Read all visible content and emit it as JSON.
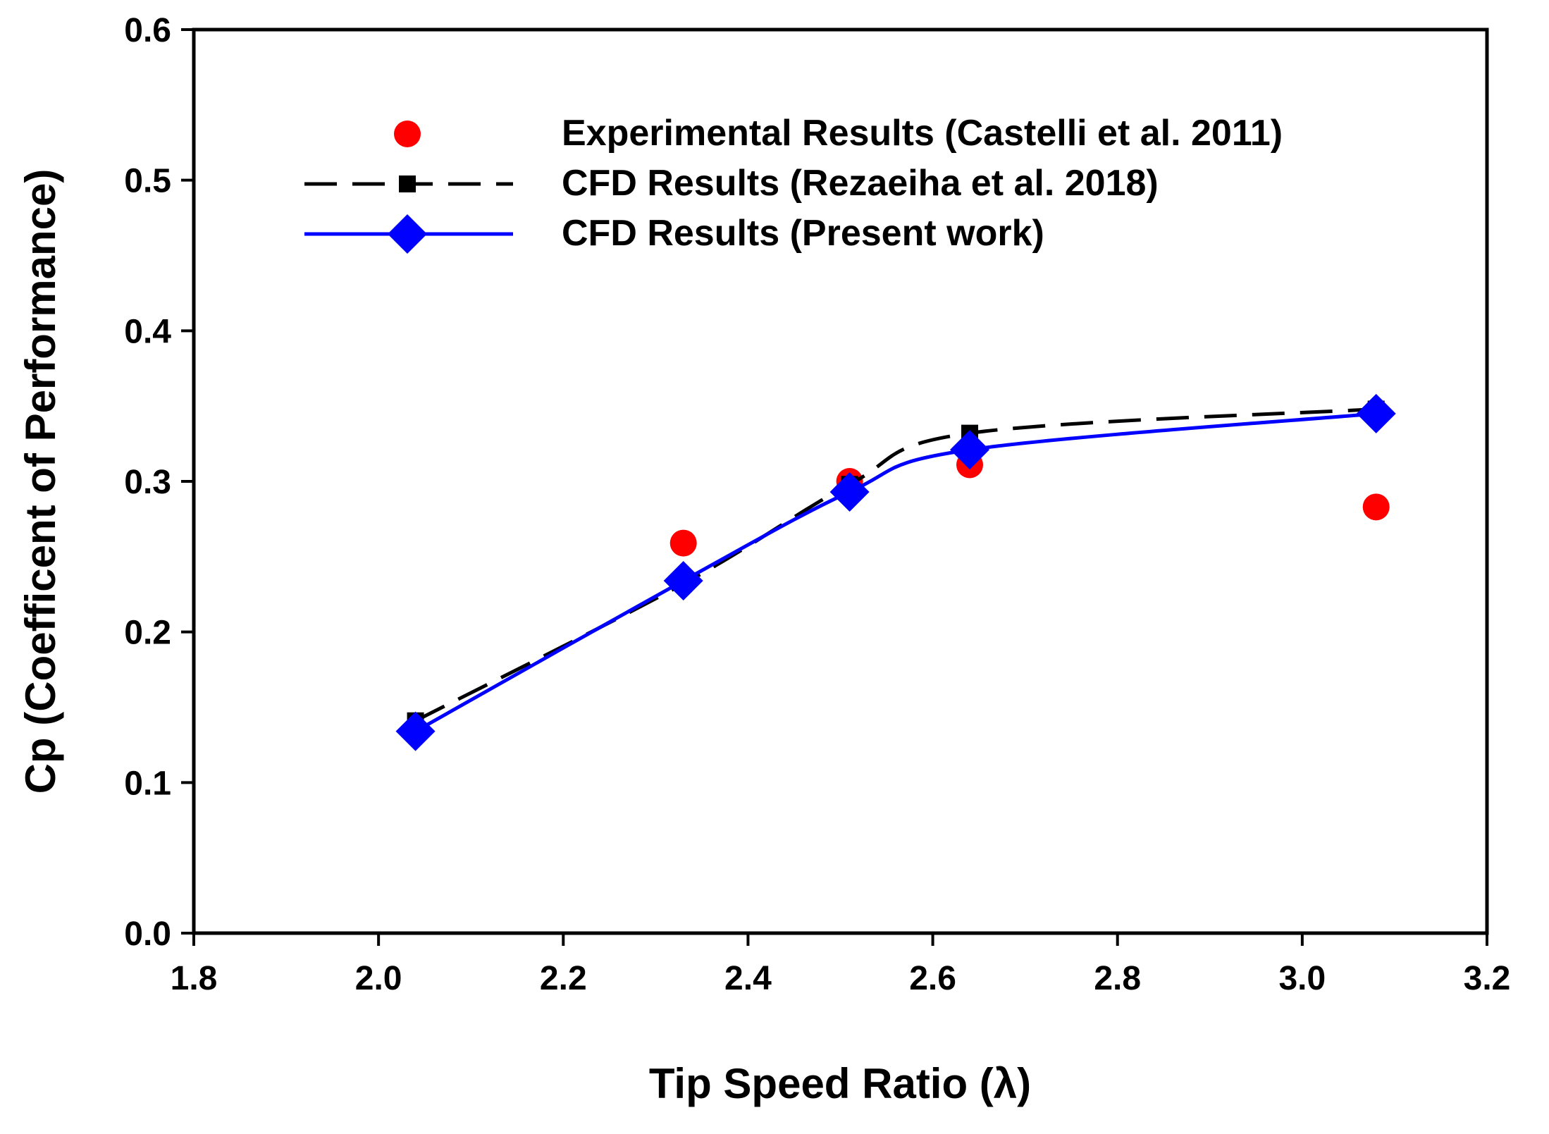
{
  "chart_data": {
    "type": "line",
    "title": "",
    "xlabel": "Tip Speed Ratio (λ)",
    "ylabel": "Cp (Coefficent of Performance)",
    "xlim": [
      1.8,
      3.2
    ],
    "ylim": [
      0.0,
      0.6
    ],
    "x_ticks": [
      "1.8",
      "2.0",
      "2.2",
      "2.4",
      "2.6",
      "2.8",
      "3.0",
      "3.2"
    ],
    "y_ticks": [
      "0.0",
      "0.1",
      "0.2",
      "0.3",
      "0.4",
      "0.5",
      "0.6"
    ],
    "grid": false,
    "legend_position": "top-left",
    "series": [
      {
        "name": "Experimental Results (Castelli et al. 2011)",
        "style": "markers",
        "marker": "circle",
        "color": "#ff0000",
        "x": [
          2.33,
          2.51,
          2.64,
          3.08
        ],
        "y": [
          0.259,
          0.3,
          0.311,
          0.283
        ]
      },
      {
        "name": "CFD Results (Rezaeiha et al. 2018)",
        "style": "dashed-line",
        "marker": "square",
        "color": "#000000",
        "x": [
          2.04,
          2.33,
          2.51,
          2.64,
          3.08
        ],
        "y": [
          0.141,
          0.232,
          0.298,
          0.332,
          0.348
        ]
      },
      {
        "name": "CFD Results (Present work)",
        "style": "solid-line",
        "marker": "diamond",
        "color": "#0000ff",
        "x": [
          2.04,
          2.33,
          2.51,
          2.64,
          3.08
        ],
        "y": [
          0.134,
          0.234,
          0.293,
          0.321,
          0.345
        ]
      }
    ]
  }
}
